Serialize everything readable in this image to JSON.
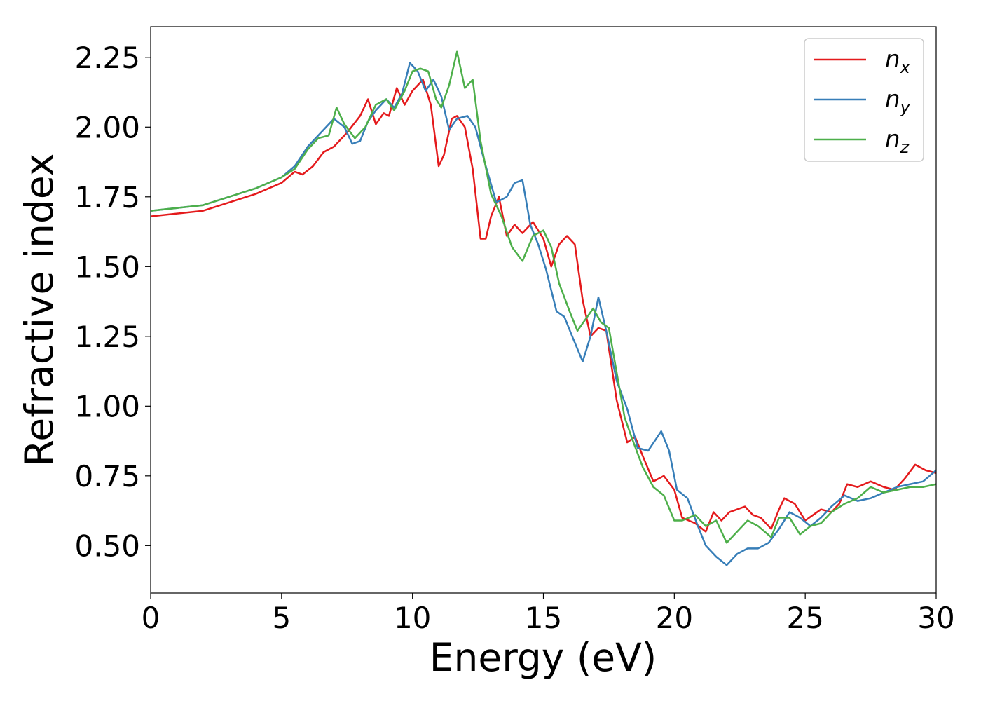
{
  "chart_data": {
    "type": "line",
    "xlabel": "Energy (eV)",
    "ylabel": "Refractive index",
    "xlim": [
      0,
      30
    ],
    "ylim": [
      0.33,
      2.36
    ],
    "xticks": [
      "0",
      "5",
      "10",
      "15",
      "20",
      "25",
      "30"
    ],
    "yticks": [
      "0.50",
      "0.75",
      "1.00",
      "1.25",
      "1.50",
      "1.75",
      "2.00",
      "2.25"
    ],
    "grid": false,
    "legend_position": "top-right",
    "series": [
      {
        "name": "n",
        "subscript": "x",
        "color": "#e41a1c",
        "x": [
          0,
          2,
          4,
          5,
          5.5,
          5.8,
          6.2,
          6.6,
          7,
          7.5,
          8,
          8.3,
          8.6,
          8.9,
          9.1,
          9.4,
          9.7,
          10,
          10.4,
          10.7,
          11,
          11.2,
          11.5,
          11.7,
          12,
          12.3,
          12.6,
          12.8,
          13,
          13.3,
          13.6,
          13.9,
          14.2,
          14.6,
          15,
          15.3,
          15.6,
          15.9,
          16.2,
          16.5,
          16.8,
          17.1,
          17.4,
          17.8,
          18.2,
          18.5,
          18.8,
          19.2,
          19.6,
          20,
          20.3,
          20.8,
          21.2,
          21.5,
          21.8,
          22.1,
          22.4,
          22.7,
          23,
          23.3,
          23.7,
          24,
          24.2,
          24.6,
          25,
          25.3,
          25.6,
          26,
          26.3,
          26.6,
          27,
          27.5,
          28,
          28.4,
          28.8,
          29.2,
          29.6,
          30
        ],
        "y": [
          1.68,
          1.7,
          1.76,
          1.8,
          1.84,
          1.83,
          1.86,
          1.91,
          1.93,
          1.98,
          2.04,
          2.1,
          2.01,
          2.05,
          2.04,
          2.14,
          2.08,
          2.13,
          2.17,
          2.08,
          1.86,
          1.9,
          2.03,
          2.04,
          2.0,
          1.85,
          1.6,
          1.6,
          1.68,
          1.75,
          1.61,
          1.65,
          1.62,
          1.66,
          1.6,
          1.5,
          1.58,
          1.61,
          1.58,
          1.38,
          1.25,
          1.28,
          1.27,
          1.02,
          0.87,
          0.89,
          0.82,
          0.73,
          0.75,
          0.7,
          0.6,
          0.58,
          0.55,
          0.62,
          0.59,
          0.62,
          0.63,
          0.64,
          0.61,
          0.6,
          0.56,
          0.63,
          0.67,
          0.65,
          0.59,
          0.61,
          0.63,
          0.62,
          0.65,
          0.72,
          0.71,
          0.73,
          0.71,
          0.7,
          0.74,
          0.79,
          0.77,
          0.76
        ]
      },
      {
        "name": "n",
        "subscript": "y",
        "color": "#377eb8",
        "x": [
          0,
          2,
          4,
          5,
          5.5,
          6,
          6.5,
          7,
          7.4,
          7.7,
          8,
          8.3,
          8.6,
          9,
          9.3,
          9.6,
          9.9,
          10.2,
          10.5,
          10.8,
          11.1,
          11.4,
          11.7,
          12.1,
          12.4,
          12.8,
          13.2,
          13.6,
          13.9,
          14.2,
          14.5,
          14.8,
          15.1,
          15.5,
          15.8,
          16.1,
          16.5,
          16.8,
          17.1,
          17.4,
          17.8,
          18.2,
          18.6,
          19,
          19.5,
          19.8,
          20.1,
          20.5,
          20.9,
          21.2,
          21.6,
          22,
          22.4,
          22.8,
          23.2,
          23.6,
          24,
          24.4,
          24.8,
          25.2,
          25.6,
          26,
          26.5,
          27,
          27.5,
          28,
          28.5,
          29,
          29.5,
          30
        ],
        "y": [
          1.7,
          1.72,
          1.78,
          1.82,
          1.86,
          1.93,
          1.98,
          2.03,
          2.0,
          1.94,
          1.95,
          2.02,
          2.06,
          2.1,
          2.07,
          2.12,
          2.23,
          2.2,
          2.13,
          2.17,
          2.11,
          1.99,
          2.03,
          2.04,
          2.0,
          1.86,
          1.73,
          1.75,
          1.8,
          1.81,
          1.65,
          1.58,
          1.49,
          1.34,
          1.32,
          1.25,
          1.16,
          1.25,
          1.39,
          1.27,
          1.09,
          0.99,
          0.85,
          0.84,
          0.91,
          0.84,
          0.7,
          0.67,
          0.57,
          0.5,
          0.46,
          0.43,
          0.47,
          0.49,
          0.49,
          0.51,
          0.56,
          0.62,
          0.6,
          0.57,
          0.6,
          0.64,
          0.68,
          0.66,
          0.67,
          0.69,
          0.71,
          0.72,
          0.73,
          0.77
        ]
      },
      {
        "name": "n",
        "subscript": "z",
        "color": "#4daf4a",
        "x": [
          0,
          2,
          4,
          5,
          5.5,
          6,
          6.4,
          6.8,
          7.1,
          7.4,
          7.8,
          8.2,
          8.6,
          9,
          9.3,
          9.7,
          10,
          10.3,
          10.6,
          10.9,
          11.1,
          11.4,
          11.7,
          12,
          12.3,
          12.6,
          13,
          13.4,
          13.8,
          14.2,
          14.6,
          15,
          15.3,
          15.6,
          16,
          16.3,
          16.6,
          16.9,
          17.2,
          17.5,
          17.8,
          18.1,
          18.4,
          18.8,
          19.2,
          19.6,
          20,
          20.3,
          20.8,
          21.2,
          21.6,
          22,
          22.4,
          22.8,
          23.2,
          23.7,
          24,
          24.4,
          24.8,
          25.2,
          25.6,
          26,
          26.5,
          27,
          27.5,
          28,
          28.5,
          29,
          29.5,
          30
        ],
        "y": [
          1.7,
          1.72,
          1.78,
          1.82,
          1.85,
          1.92,
          1.96,
          1.97,
          2.07,
          2.01,
          1.96,
          2.0,
          2.08,
          2.1,
          2.06,
          2.13,
          2.2,
          2.21,
          2.2,
          2.1,
          2.07,
          2.15,
          2.27,
          2.14,
          2.17,
          1.95,
          1.76,
          1.68,
          1.57,
          1.52,
          1.61,
          1.63,
          1.57,
          1.44,
          1.34,
          1.27,
          1.31,
          1.35,
          1.3,
          1.28,
          1.12,
          0.96,
          0.88,
          0.78,
          0.71,
          0.68,
          0.59,
          0.59,
          0.61,
          0.57,
          0.59,
          0.51,
          0.55,
          0.59,
          0.57,
          0.53,
          0.6,
          0.6,
          0.54,
          0.57,
          0.58,
          0.62,
          0.65,
          0.67,
          0.71,
          0.69,
          0.7,
          0.71,
          0.71,
          0.72
        ]
      }
    ]
  }
}
